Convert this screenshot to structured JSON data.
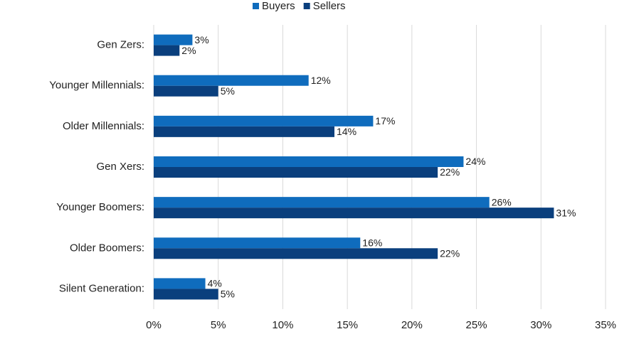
{
  "chart_data": {
    "type": "hbar",
    "categories": [
      "Gen Zers:",
      "Younger Millennials:",
      "Older Millennials:",
      "Gen Xers:",
      "Younger Boomers:",
      "Older Boomers:",
      "Silent Generation:"
    ],
    "series": [
      {
        "name": "Buyers",
        "color": "#0f6cbd",
        "values": [
          3,
          12,
          17,
          24,
          26,
          16,
          4
        ],
        "value_labels": [
          "3%",
          "12%",
          "17%",
          "24%",
          "26%",
          "16%",
          "4%"
        ]
      },
      {
        "name": "Sellers",
        "color": "#0a3f7d",
        "values": [
          2,
          5,
          14,
          22,
          31,
          22,
          5
        ],
        "value_labels": [
          "2%",
          "5%",
          "14%",
          "22%",
          "31%",
          "22%",
          "5%"
        ]
      }
    ],
    "xlim": [
      0,
      35
    ],
    "xticks": [
      {
        "value": 0,
        "label": "0%"
      },
      {
        "value": 5,
        "label": "5%"
      },
      {
        "value": 10,
        "label": "10%"
      },
      {
        "value": 15,
        "label": "15%"
      },
      {
        "value": 20,
        "label": "20%"
      },
      {
        "value": 25,
        "label": "25%"
      },
      {
        "value": 30,
        "label": "30%"
      },
      {
        "value": 35,
        "label": "35%"
      }
    ],
    "grid": true,
    "legend": "top"
  }
}
